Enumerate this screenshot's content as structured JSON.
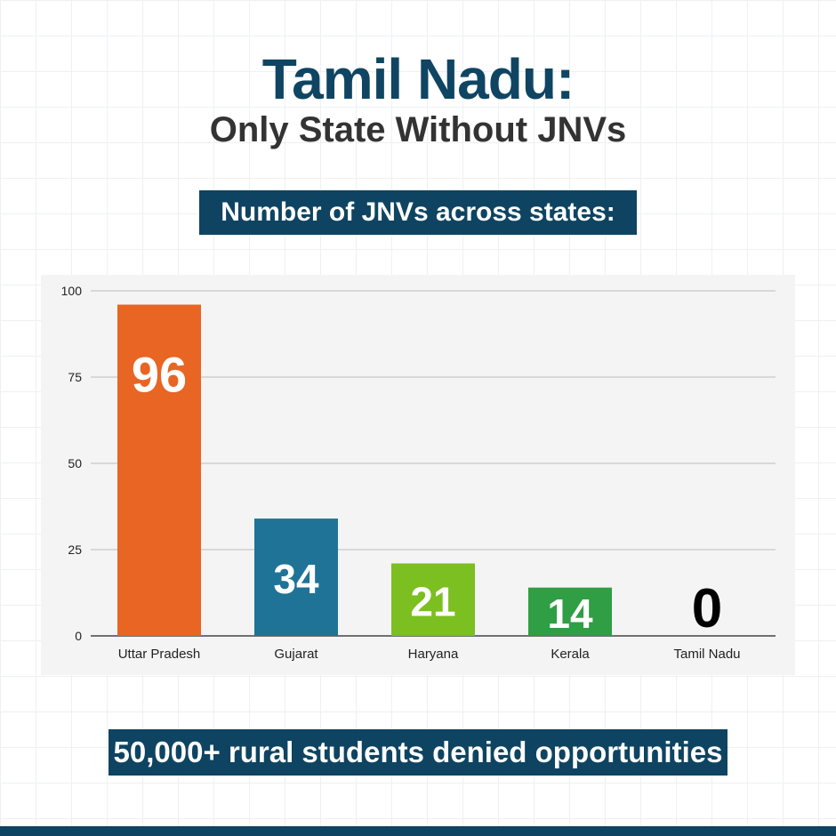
{
  "header": {
    "title": "Tamil Nadu:",
    "subtitle": "Only State Without JNVs"
  },
  "banner_top": "Number of JNVs across states:",
  "banner_bottom": "50,000+ rural students denied opportunities",
  "colors": {
    "title": "#0f4562",
    "banner": "#0e4461"
  },
  "chart_data": {
    "type": "bar",
    "categories": [
      "Uttar Pradesh",
      "Gujarat",
      "Haryana",
      "Kerala",
      "Tamil Nadu"
    ],
    "values": [
      96,
      34,
      21,
      14,
      0
    ],
    "data_labels": [
      "96",
      "34",
      "21",
      "14",
      "0"
    ],
    "bar_colors": [
      "#e86524",
      "#1f7397",
      "#7cbf20",
      "#2f9e44",
      "#000000"
    ],
    "yticks": [
      "0",
      "25",
      "50",
      "75",
      "100"
    ],
    "ylim": [
      0,
      100
    ],
    "grid": true,
    "legend": "none"
  }
}
